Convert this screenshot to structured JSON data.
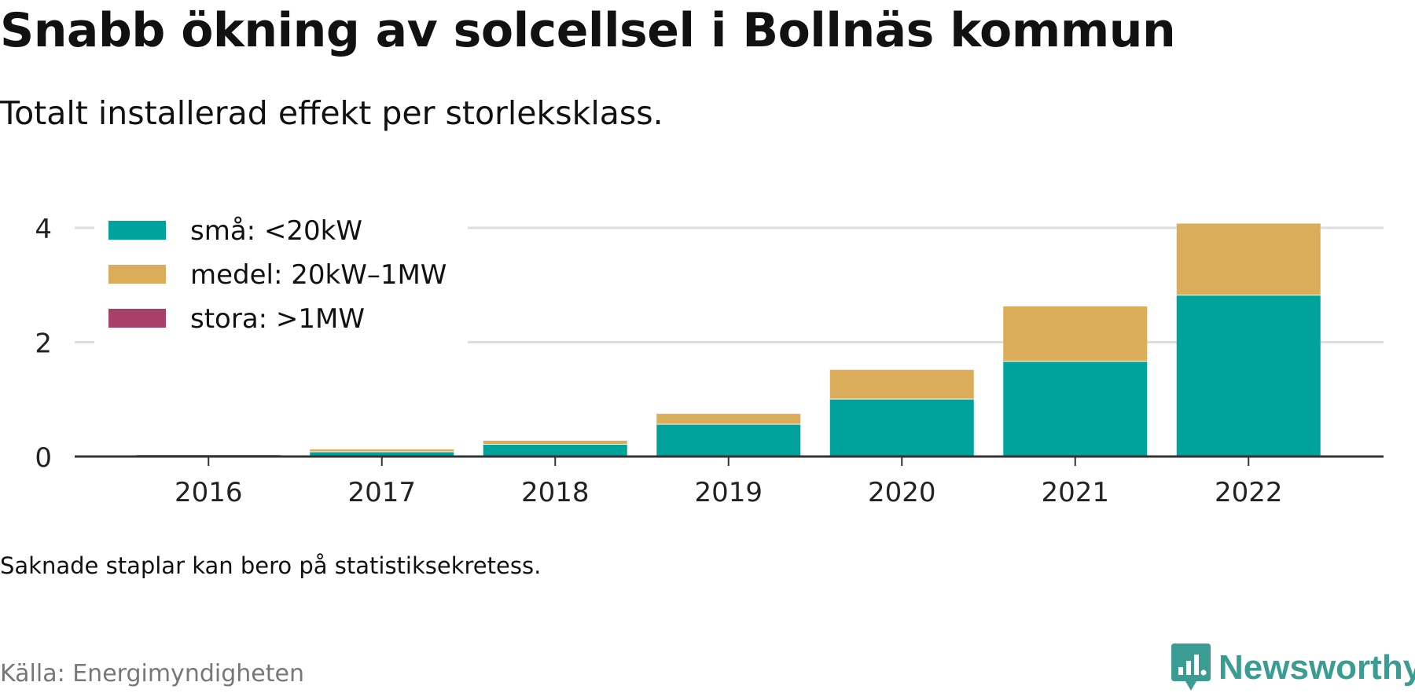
{
  "header": {
    "title": "Snabb ökning av solcellsel i Bollnäs kommun",
    "subtitle": "Totalt installerad effekt per storleksklass."
  },
  "footer": {
    "note": "Saknade staplar kan bero på statistiksekretess.",
    "source": "Källa: Energimyndigheten",
    "brand": "Newsworthy",
    "brand_icon": "newsworthy-logo-icon",
    "brand_color": "#3a9c93"
  },
  "chart_data": {
    "type": "bar",
    "stacked": true,
    "title": "Snabb ökning av solcellsel i Bollnäs kommun",
    "subtitle": "Totalt installerad effekt per storleksklass.",
    "xlabel": "",
    "ylabel": "",
    "categories": [
      "2016",
      "2017",
      "2018",
      "2019",
      "2020",
      "2021",
      "2022"
    ],
    "series": [
      {
        "name": "små: <20kW",
        "color": "#00a39b",
        "values": [
          0.04,
          0.09,
          0.22,
          0.57,
          1.01,
          1.67,
          2.83
        ]
      },
      {
        "name": "medel: 20kW–1MW",
        "color": "#dbad5a",
        "values": [
          0.0,
          0.05,
          0.07,
          0.19,
          0.52,
          0.97,
          1.26
        ]
      },
      {
        "name": "stora: >1MW",
        "color": "#a8406a",
        "values": [
          0,
          0,
          0,
          0,
          0,
          0,
          0
        ]
      }
    ],
    "ylim": [
      0,
      4.3
    ],
    "yticks": [
      0,
      2,
      4
    ],
    "grid": true,
    "legend": "top-left"
  }
}
